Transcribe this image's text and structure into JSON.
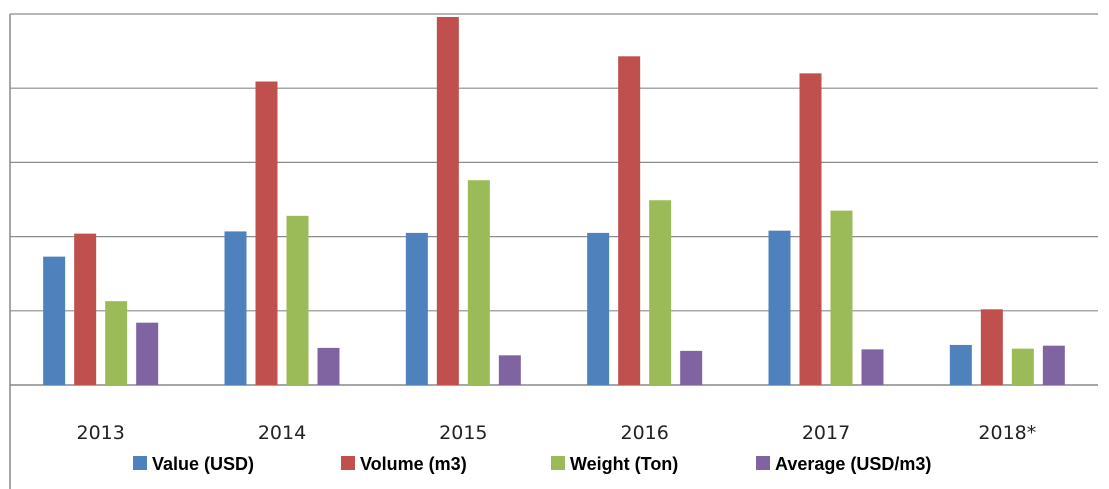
{
  "chart_data": {
    "type": "bar",
    "title": "",
    "xlabel": "",
    "ylabel": "",
    "categories": [
      "2013",
      "2014",
      "2015",
      "2016",
      "2017",
      "2018*"
    ],
    "ylim": [
      0,
      5
    ],
    "y_ticks_labeled": false,
    "grid": true,
    "legend_position": "bottom",
    "series": [
      {
        "name": "Value (USD)",
        "color": "#4F81BD",
        "values": [
          1.73,
          2.07,
          2.05,
          2.05,
          2.08,
          0.54
        ]
      },
      {
        "name": "Volume (m3)",
        "color": "#C0504D",
        "values": [
          2.04,
          4.09,
          4.96,
          4.43,
          4.2,
          1.02
        ]
      },
      {
        "name": "Weight (Ton)",
        "color": "#9BBB59",
        "values": [
          1.13,
          2.28,
          2.76,
          2.49,
          2.35,
          0.49
        ]
      },
      {
        "name": "Average (USD/m3)",
        "color": "#8064A2",
        "values": [
          0.84,
          0.5,
          0.4,
          0.46,
          0.48,
          0.53
        ]
      }
    ]
  }
}
